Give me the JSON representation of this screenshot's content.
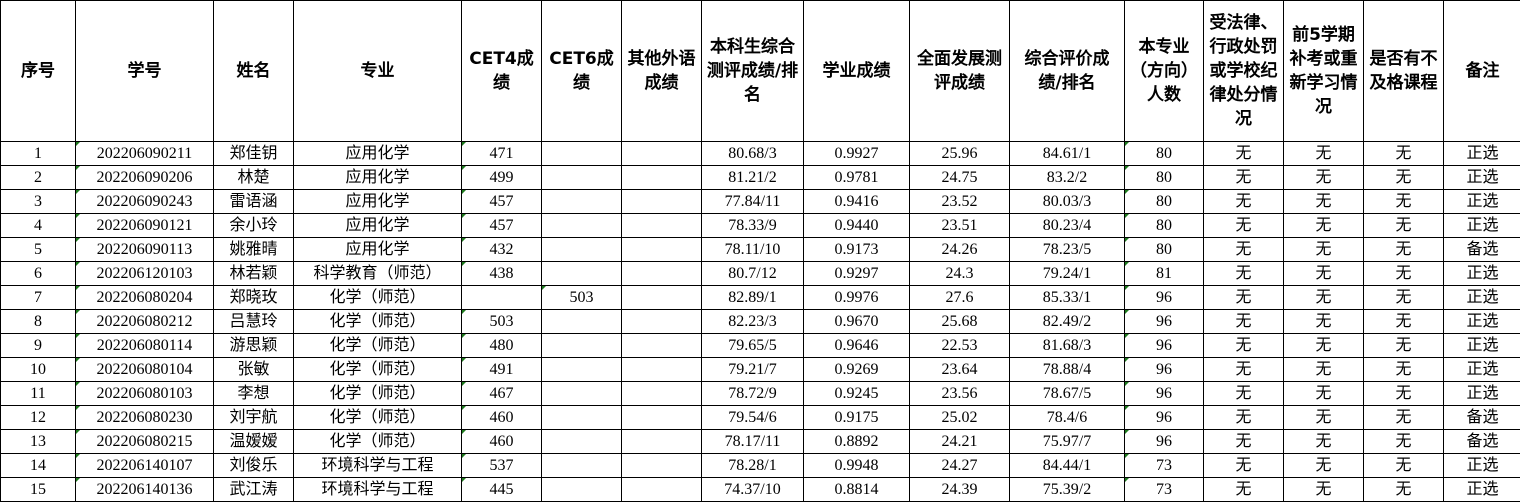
{
  "headers": [
    "序号",
    "学号",
    "姓名",
    "专业",
    "CET4成绩",
    "CET6成绩",
    "其他外语成绩",
    "本科生综合测评成绩/排名",
    "学业成绩",
    "全面发展测评成绩",
    "综合评价成绩/排名",
    "本专业（方向）人数",
    "受法律、行政处罚或学校纪律处分情况",
    "前5学期补考或重新学习情况",
    "是否有不及格课程",
    "备注"
  ],
  "rows": [
    [
      "1",
      "202206090211",
      "郑佳钥",
      "应用化学",
      "471",
      "",
      "",
      "80.68/3",
      "0.9927",
      "25.96",
      "84.61/1",
      "80",
      "无",
      "无",
      "无",
      "正选"
    ],
    [
      "2",
      "202206090206",
      "林楚",
      "应用化学",
      "499",
      "",
      "",
      "81.21/2",
      "0.9781",
      "24.75",
      "83.2/2",
      "80",
      "无",
      "无",
      "无",
      "正选"
    ],
    [
      "3",
      "202206090243",
      "雷语涵",
      "应用化学",
      "457",
      "",
      "",
      "77.84/11",
      "0.9416",
      "23.52",
      "80.03/3",
      "80",
      "无",
      "无",
      "无",
      "正选"
    ],
    [
      "4",
      "202206090121",
      "余小玲",
      "应用化学",
      "457",
      "",
      "",
      "78.33/9",
      "0.9440",
      "23.51",
      "80.23/4",
      "80",
      "无",
      "无",
      "无",
      "正选"
    ],
    [
      "5",
      "202206090113",
      "姚雅晴",
      "应用化学",
      "432",
      "",
      "",
      "78.11/10",
      "0.9173",
      "24.26",
      "78.23/5",
      "80",
      "无",
      "无",
      "无",
      "备选"
    ],
    [
      "6",
      "202206120103",
      "林若颖",
      "科学教育（师范）",
      "438",
      "",
      "",
      "80.7/12",
      "0.9297",
      "24.3",
      "79.24/1",
      "81",
      "无",
      "无",
      "无",
      "正选"
    ],
    [
      "7",
      "202206080204",
      "郑晓玫",
      "化学（师范）",
      "",
      "503",
      "",
      "82.89/1",
      "0.9976",
      "27.6",
      "85.33/1",
      "96",
      "无",
      "无",
      "无",
      "正选"
    ],
    [
      "8",
      "202206080212",
      "吕慧玲",
      "化学（师范）",
      "503",
      "",
      "",
      "82.23/3",
      "0.9670",
      "25.68",
      "82.49/2",
      "96",
      "无",
      "无",
      "无",
      "正选"
    ],
    [
      "9",
      "202206080114",
      "游思颖",
      "化学（师范）",
      "480",
      "",
      "",
      "79.65/5",
      "0.9646",
      "22.53",
      "81.68/3",
      "96",
      "无",
      "无",
      "无",
      "正选"
    ],
    [
      "10",
      "202206080104",
      "张敏",
      "化学（师范）",
      "491",
      "",
      "",
      "79.21/7",
      "0.9269",
      "23.64",
      "78.88/4",
      "96",
      "无",
      "无",
      "无",
      "正选"
    ],
    [
      "11",
      "202206080103",
      "李想",
      "化学（师范）",
      "467",
      "",
      "",
      "78.72/9",
      "0.9245",
      "23.56",
      "78.67/5",
      "96",
      "无",
      "无",
      "无",
      "正选"
    ],
    [
      "12",
      "202206080230",
      "刘宇航",
      "化学（师范）",
      "460",
      "",
      "",
      "79.54/6",
      "0.9175",
      "25.02",
      "78.4/6",
      "96",
      "无",
      "无",
      "无",
      "备选"
    ],
    [
      "13",
      "202206080215",
      "温嫒嫒",
      "化学（师范）",
      "460",
      "",
      "",
      "78.17/11",
      "0.8892",
      "24.21",
      "75.97/7",
      "96",
      "无",
      "无",
      "无",
      "备选"
    ],
    [
      "14",
      "202206140107",
      "刘俊乐",
      "环境科学与工程",
      "537",
      "",
      "",
      "78.28/1",
      "0.9948",
      "24.27",
      "84.44/1",
      "73",
      "无",
      "无",
      "无",
      "正选"
    ],
    [
      "15",
      "202206140136",
      "武江涛",
      "环境科学与工程",
      "445",
      "",
      "",
      "74.37/10",
      "0.8814",
      "24.39",
      "75.39/2",
      "73",
      "无",
      "无",
      "无",
      "正选"
    ]
  ]
}
